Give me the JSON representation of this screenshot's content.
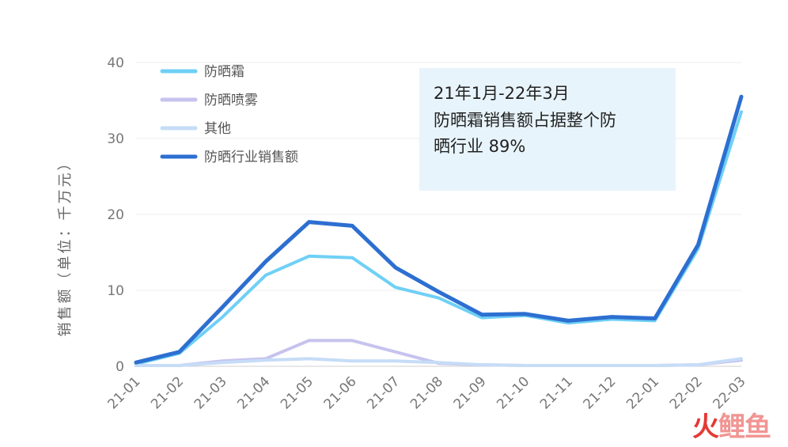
{
  "chart_data": {
    "type": "line",
    "ylabel": "销售额（单位：千万元）",
    "ylim": [
      0,
      40
    ],
    "yticks": [
      0,
      10,
      20,
      30,
      40
    ],
    "grid": true,
    "legend_position": "top-left",
    "categories": [
      "21-01",
      "21-02",
      "21-03",
      "21-04",
      "21-05",
      "21-06",
      "21-07",
      "21-08",
      "21-09",
      "21-10",
      "21-11",
      "21-12",
      "22-01",
      "22-02",
      "22-03"
    ],
    "series": [
      {
        "name": "防晒霜",
        "color": "#6fd0f5",
        "values": [
          0.3,
          1.7,
          6.5,
          12.0,
          14.5,
          14.3,
          10.4,
          9.0,
          6.4,
          6.7,
          5.7,
          6.2,
          6.0,
          15.5,
          33.5
        ]
      },
      {
        "name": "防晒喷雾",
        "color": "#c7c3ee",
        "values": [
          0.1,
          0.1,
          0.7,
          1.0,
          3.4,
          3.4,
          1.9,
          0.4,
          0.2,
          0.1,
          0.1,
          0.1,
          0.1,
          0.2,
          0.8
        ]
      },
      {
        "name": "其他",
        "color": "#c6dcf7",
        "values": [
          0.1,
          0.1,
          0.5,
          0.8,
          1.0,
          0.7,
          0.7,
          0.5,
          0.2,
          0.1,
          0.1,
          0.1,
          0.1,
          0.2,
          1.0
        ]
      },
      {
        "name": "防晒行业销售额",
        "color": "#2d6fd1",
        "values": [
          0.5,
          1.9,
          7.8,
          13.8,
          19.0,
          18.5,
          13.0,
          9.8,
          6.8,
          6.9,
          6.0,
          6.5,
          6.3,
          16.0,
          35.5
        ]
      }
    ],
    "annotation": [
      "21年1月-22年3月",
      "防晒霜销售额占据整个防",
      "晒行业 89%"
    ]
  },
  "watermark": {
    "fire": "火",
    "rest": "鲤鱼"
  }
}
